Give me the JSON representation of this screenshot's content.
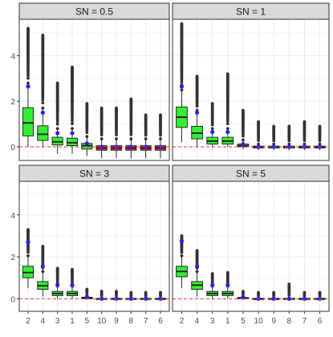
{
  "chart_data": {
    "type": "boxplot",
    "layout": "facet-grid-2x2",
    "title": "",
    "xlabel": "",
    "ylabel": "",
    "categories": [
      "2",
      "4",
      "3",
      "1",
      "5",
      "10",
      "9",
      "8",
      "7",
      "6"
    ],
    "ylim": [
      -0.6,
      5.6
    ],
    "yticks": [
      0,
      2,
      4
    ],
    "grid": true,
    "reference_line": {
      "y": 0,
      "style": "dashed"
    },
    "colors": {
      "box_fill": "#33ee33",
      "box_fill_below_zero": "#ee2222",
      "mean_marker": "#2222ff",
      "outliers": "#333333",
      "reference_line": "#ee3333",
      "strip_fill": "#d9d9d9",
      "grid": "#ebebeb"
    },
    "facets": [
      {
        "label": "SN =  0.5",
        "boxes": [
          {
            "category": "2",
            "min": 0.0,
            "q1": 0.48,
            "median": 1.05,
            "q3": 1.72,
            "max": 2.8,
            "mean": 2.65,
            "outliers_max": 5.2
          },
          {
            "category": "4",
            "min": 0.0,
            "q1": 0.28,
            "median": 0.55,
            "q3": 0.92,
            "max": 1.7,
            "mean": 1.5,
            "outliers_max": 4.9
          },
          {
            "category": "3",
            "min": -0.3,
            "q1": 0.08,
            "median": 0.22,
            "q3": 0.42,
            "max": 0.8,
            "mean": 0.6,
            "outliers_max": 2.8
          },
          {
            "category": "1",
            "min": -0.3,
            "q1": 0.05,
            "median": 0.18,
            "q3": 0.38,
            "max": 0.8,
            "mean": 0.6,
            "outliers_max": 3.5
          },
          {
            "category": "5",
            "min": -0.4,
            "q1": -0.1,
            "median": 0.05,
            "q3": 0.15,
            "max": 0.45,
            "mean": 0.15,
            "outliers_max": 1.9
          },
          {
            "category": "10",
            "min": -0.5,
            "q1": -0.15,
            "median": -0.05,
            "q3": 0.05,
            "max": 0.35,
            "mean": 0.0,
            "outliers_max": 1.7
          },
          {
            "category": "9",
            "min": -0.5,
            "q1": -0.15,
            "median": -0.05,
            "q3": 0.05,
            "max": 0.35,
            "mean": 0.0,
            "outliers_max": 1.7
          },
          {
            "category": "8",
            "min": -0.5,
            "q1": -0.15,
            "median": -0.05,
            "q3": 0.05,
            "max": 0.35,
            "mean": 0.0,
            "outliers_max": 2.1
          },
          {
            "category": "7",
            "min": -0.5,
            "q1": -0.15,
            "median": -0.05,
            "q3": 0.05,
            "max": 0.35,
            "mean": 0.0,
            "outliers_max": 1.4
          },
          {
            "category": "6",
            "min": -0.5,
            "q1": -0.15,
            "median": -0.05,
            "q3": 0.05,
            "max": 0.35,
            "mean": 0.0,
            "outliers_max": 1.4
          }
        ]
      },
      {
        "label": "SN =  1",
        "boxes": [
          {
            "category": "2",
            "min": 0.2,
            "q1": 0.85,
            "median": 1.3,
            "q3": 1.75,
            "max": 2.5,
            "mean": 2.65,
            "outliers_max": 5.4
          },
          {
            "category": "4",
            "min": 0.0,
            "q1": 0.35,
            "median": 0.6,
            "q3": 0.9,
            "max": 1.6,
            "mean": 1.5,
            "outliers_max": 3.1
          },
          {
            "category": "3",
            "min": 0.0,
            "q1": 0.12,
            "median": 0.25,
            "q3": 0.42,
            "max": 0.8,
            "mean": 0.65,
            "outliers_max": 1.9
          },
          {
            "category": "1",
            "min": 0.0,
            "q1": 0.12,
            "median": 0.25,
            "q3": 0.42,
            "max": 0.8,
            "mean": 0.65,
            "outliers_max": 3.2
          },
          {
            "category": "5",
            "min": -0.1,
            "q1": 0.0,
            "median": 0.05,
            "q3": 0.12,
            "max": 0.3,
            "mean": 0.12,
            "outliers_max": 1.6
          },
          {
            "category": "10",
            "min": -0.15,
            "q1": -0.05,
            "median": 0.0,
            "q3": 0.03,
            "max": 0.12,
            "mean": 0.0,
            "outliers_max": 1.1
          },
          {
            "category": "9",
            "min": -0.15,
            "q1": -0.05,
            "median": 0.0,
            "q3": 0.03,
            "max": 0.12,
            "mean": 0.0,
            "outliers_max": 0.9
          },
          {
            "category": "8",
            "min": -0.15,
            "q1": -0.05,
            "median": 0.0,
            "q3": 0.03,
            "max": 0.12,
            "mean": 0.0,
            "outliers_max": 0.9
          },
          {
            "category": "7",
            "min": -0.15,
            "q1": -0.05,
            "median": 0.0,
            "q3": 0.03,
            "max": 0.12,
            "mean": 0.0,
            "outliers_max": 1.1
          },
          {
            "category": "6",
            "min": -0.15,
            "q1": -0.05,
            "median": 0.0,
            "q3": 0.03,
            "max": 0.12,
            "mean": 0.0,
            "outliers_max": 0.9
          }
        ]
      },
      {
        "label": "SN =  3",
        "boxes": [
          {
            "category": "2",
            "min": 0.5,
            "q1": 1.0,
            "median": 1.25,
            "q3": 1.55,
            "max": 2.05,
            "mean": 2.7,
            "outliers_max": 3.3
          },
          {
            "category": "4",
            "min": 0.1,
            "q1": 0.45,
            "median": 0.62,
            "q3": 0.82,
            "max": 1.3,
            "mean": 1.55,
            "outliers_max": 2.5
          },
          {
            "category": "3",
            "min": 0.0,
            "q1": 0.15,
            "median": 0.25,
            "q3": 0.35,
            "max": 0.6,
            "mean": 0.65,
            "outliers_max": 1.45
          },
          {
            "category": "1",
            "min": 0.0,
            "q1": 0.15,
            "median": 0.25,
            "q3": 0.35,
            "max": 0.6,
            "mean": 0.65,
            "outliers_max": 1.4
          },
          {
            "category": "5",
            "min": -0.05,
            "q1": 0.0,
            "median": 0.03,
            "q3": 0.07,
            "max": 0.15,
            "mean": 0.1,
            "outliers_max": 0.45
          },
          {
            "category": "10",
            "min": -0.05,
            "q1": -0.02,
            "median": 0.0,
            "q3": 0.02,
            "max": 0.05,
            "mean": 0.0,
            "outliers_max": 0.35
          },
          {
            "category": "9",
            "min": -0.05,
            "q1": -0.02,
            "median": 0.0,
            "q3": 0.02,
            "max": 0.05,
            "mean": 0.0,
            "outliers_max": 0.35
          },
          {
            "category": "8",
            "min": -0.05,
            "q1": -0.02,
            "median": 0.0,
            "q3": 0.02,
            "max": 0.05,
            "mean": 0.0,
            "outliers_max": 0.3
          },
          {
            "category": "7",
            "min": -0.05,
            "q1": -0.02,
            "median": 0.0,
            "q3": 0.02,
            "max": 0.05,
            "mean": 0.0,
            "outliers_max": 0.3
          },
          {
            "category": "6",
            "min": -0.05,
            "q1": -0.02,
            "median": 0.0,
            "q3": 0.02,
            "max": 0.05,
            "mean": 0.0,
            "outliers_max": 0.3
          }
        ]
      },
      {
        "label": "SN =  5",
        "boxes": [
          {
            "category": "2",
            "min": 0.5,
            "q1": 1.05,
            "median": 1.3,
            "q3": 1.55,
            "max": 2.05,
            "mean": 2.75,
            "outliers_max": 3.0
          },
          {
            "category": "4",
            "min": 0.1,
            "q1": 0.45,
            "median": 0.65,
            "q3": 0.82,
            "max": 1.3,
            "mean": 1.55,
            "outliers_max": 2.3
          },
          {
            "category": "3",
            "min": 0.0,
            "q1": 0.15,
            "median": 0.25,
            "q3": 0.35,
            "max": 0.6,
            "mean": 0.65,
            "outliers_max": 1.2
          },
          {
            "category": "1",
            "min": 0.0,
            "q1": 0.15,
            "median": 0.25,
            "q3": 0.35,
            "max": 0.6,
            "mean": 0.65,
            "outliers_max": 1.25
          },
          {
            "category": "5",
            "min": -0.05,
            "q1": 0.0,
            "median": 0.03,
            "q3": 0.06,
            "max": 0.12,
            "mean": 0.08,
            "outliers_max": 0.35
          },
          {
            "category": "10",
            "min": -0.05,
            "q1": -0.02,
            "median": 0.0,
            "q3": 0.02,
            "max": 0.05,
            "mean": 0.0,
            "outliers_max": 0.3
          },
          {
            "category": "9",
            "min": -0.05,
            "q1": -0.02,
            "median": 0.0,
            "q3": 0.02,
            "max": 0.05,
            "mean": 0.0,
            "outliers_max": 0.3
          },
          {
            "category": "8",
            "min": -0.05,
            "q1": -0.02,
            "median": 0.0,
            "q3": 0.02,
            "max": 0.05,
            "mean": 0.0,
            "outliers_max": 0.7
          },
          {
            "category": "7",
            "min": -0.05,
            "q1": -0.02,
            "median": 0.0,
            "q3": 0.02,
            "max": 0.05,
            "mean": 0.0,
            "outliers_max": 0.3
          },
          {
            "category": "6",
            "min": -0.05,
            "q1": -0.02,
            "median": 0.0,
            "q3": 0.02,
            "max": 0.05,
            "mean": 0.0,
            "outliers_max": 0.3
          }
        ]
      }
    ]
  }
}
